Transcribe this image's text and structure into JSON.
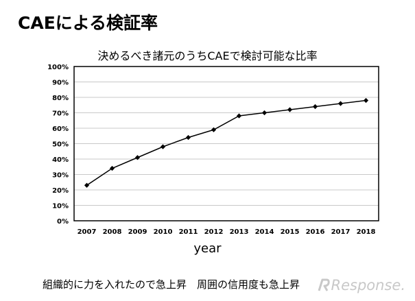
{
  "slide": {
    "title": "CAEによる検証率",
    "caption": "組織的に力を入れたので急上昇　周囲の信用度も急上昇",
    "watermark": "Response."
  },
  "chart_data": {
    "type": "line",
    "title": "決めるべき諸元のうちCAEで検討可能な比率",
    "xlabel": "year",
    "ylabel": "",
    "x": [
      "2007",
      "2008",
      "2009",
      "2010",
      "2011",
      "2012",
      "2013",
      "2014",
      "2015",
      "2016",
      "2017",
      "2018"
    ],
    "series": [
      {
        "values": [
          23,
          34,
          41,
          48,
          54,
          59,
          68,
          70,
          72,
          74,
          76,
          78
        ]
      }
    ],
    "ylim": [
      0,
      100
    ],
    "yticks": [
      "0%",
      "10%",
      "20%",
      "30%",
      "40%",
      "50%",
      "60%",
      "70%",
      "80%",
      "90%",
      "100%"
    ],
    "grid": true,
    "marker": "diamond",
    "line_color": "#000000"
  }
}
